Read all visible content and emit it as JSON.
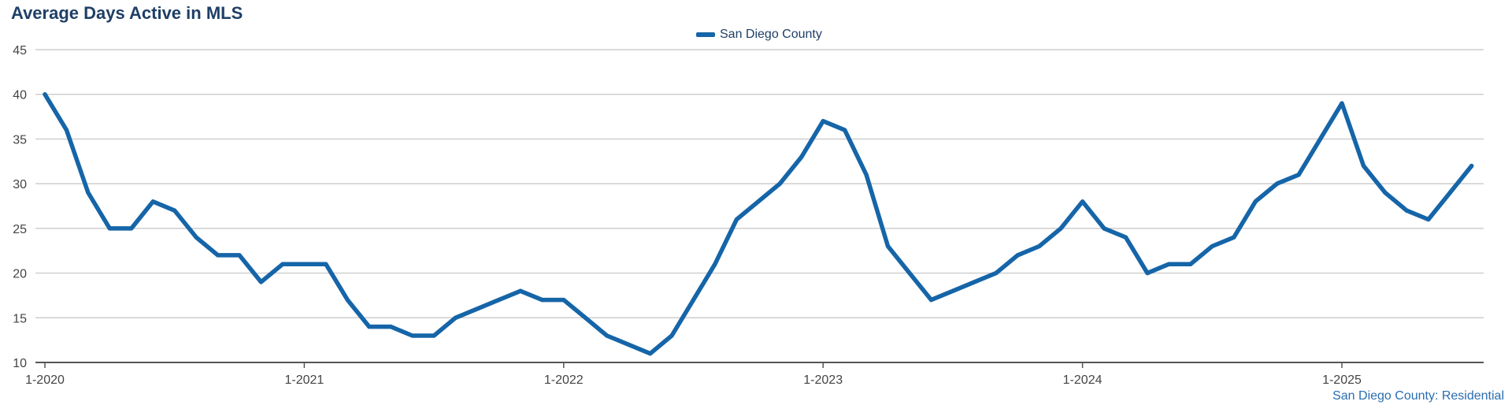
{
  "title": "Average Days Active in MLS",
  "footer": "San Diego County: Residential",
  "colors": {
    "series": "#1565a8",
    "title": "#1f3f66",
    "grid": "#c4c4c4",
    "axis": "#555555",
    "footer": "#2a6db0"
  },
  "chart_data": {
    "type": "line",
    "title": "Average Days Active in MLS",
    "xlabel": "",
    "ylabel": "",
    "ylim": [
      10,
      45
    ],
    "yticks": [
      10,
      15,
      20,
      25,
      30,
      35,
      40,
      45
    ],
    "xticks": [
      "1-2020",
      "1-2021",
      "1-2022",
      "1-2023",
      "1-2024",
      "1-2025"
    ],
    "grid": "horizontal",
    "legend_position": "top-center",
    "x": [
      "1-2020",
      "2-2020",
      "3-2020",
      "4-2020",
      "5-2020",
      "6-2020",
      "7-2020",
      "8-2020",
      "9-2020",
      "10-2020",
      "11-2020",
      "12-2020",
      "1-2021",
      "2-2021",
      "3-2021",
      "4-2021",
      "5-2021",
      "6-2021",
      "7-2021",
      "8-2021",
      "9-2021",
      "10-2021",
      "11-2021",
      "12-2021",
      "1-2022",
      "2-2022",
      "3-2022",
      "4-2022",
      "5-2022",
      "6-2022",
      "7-2022",
      "8-2022",
      "9-2022",
      "10-2022",
      "11-2022",
      "12-2022",
      "1-2023",
      "2-2023",
      "3-2023",
      "4-2023",
      "5-2023",
      "6-2023",
      "7-2023",
      "8-2023",
      "9-2023",
      "10-2023",
      "11-2023",
      "12-2023",
      "1-2024",
      "2-2024",
      "3-2024",
      "4-2024",
      "5-2024",
      "6-2024",
      "7-2024",
      "8-2024",
      "9-2024",
      "10-2024",
      "11-2024",
      "12-2024",
      "1-2025",
      "2-2025",
      "3-2025",
      "4-2025",
      "5-2025",
      "6-2025",
      "7-2025"
    ],
    "series": [
      {
        "name": "San Diego County",
        "color": "#1565a8",
        "values": [
          40,
          36,
          29,
          25,
          25,
          28,
          27,
          24,
          22,
          22,
          19,
          21,
          21,
          21,
          17,
          14,
          14,
          13,
          13,
          15,
          16,
          17,
          18,
          17,
          17,
          15,
          13,
          12,
          11,
          13,
          17,
          21,
          26,
          28,
          30,
          33,
          37,
          36,
          31,
          23,
          20,
          17,
          18,
          19,
          20,
          22,
          23,
          25,
          28,
          25,
          24,
          20,
          21,
          21,
          23,
          24,
          28,
          30,
          31,
          35,
          39,
          32,
          29,
          27,
          26,
          29,
          32
        ]
      }
    ]
  }
}
